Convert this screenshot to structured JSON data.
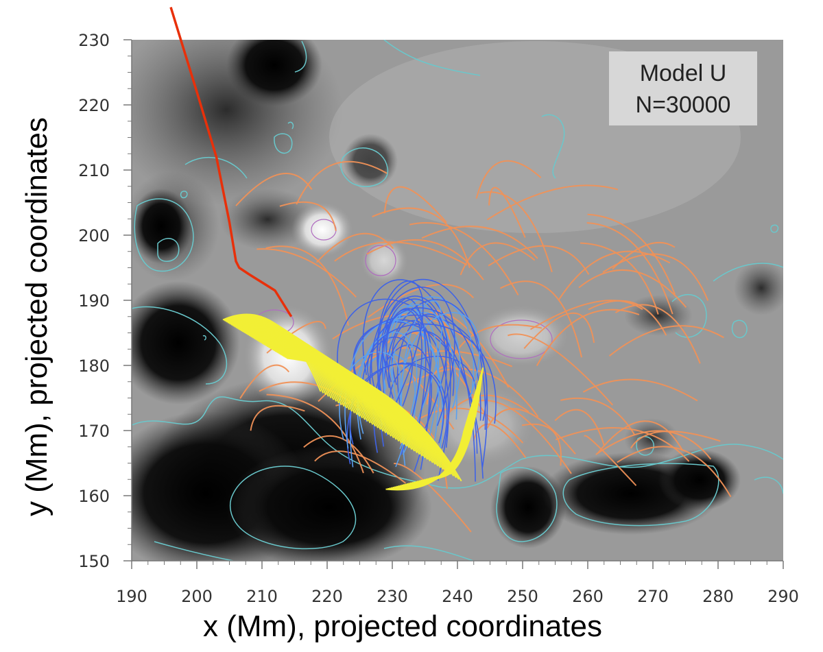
{
  "chart_data": {
    "type": "scatter",
    "xlabel": "x (Mm), projected coordinates",
    "ylabel": "y (Mm), projected coordinates",
    "xlim": [
      190,
      290
    ],
    "ylim": [
      150,
      230
    ],
    "xticks": [
      190,
      200,
      210,
      220,
      230,
      240,
      250,
      260,
      270,
      280,
      290
    ],
    "yticks": [
      150,
      160,
      170,
      180,
      190,
      200,
      210,
      220,
      230
    ],
    "xtick_labels": [
      "190",
      "200",
      "210",
      "220",
      "230",
      "240",
      "250",
      "260",
      "270",
      "280",
      "290"
    ],
    "ytick_labels": [
      "150",
      "160",
      "170",
      "180",
      "190",
      "200",
      "210",
      "220",
      "230"
    ],
    "annotation_box": {
      "line1": "Model U",
      "line2": "N=30000"
    },
    "grid": false,
    "background": "grayscale magnetogram with cyan contours",
    "series": [
      {
        "color": "#e8300a",
        "points": [
          [
            196,
            235
          ],
          [
            200,
            222
          ],
          [
            203,
            212
          ],
          [
            205,
            202
          ],
          [
            206,
            196
          ],
          [
            206.5,
            195
          ],
          [
            208,
            194
          ],
          [
            212,
            191.5
          ],
          [
            214.5,
            187.5
          ]
        ]
      }
    ],
    "field_lines": {
      "yellow": {
        "color": "#f2ef35",
        "region": {
          "x": [
            203,
            247
          ],
          "y": [
            158,
            194
          ]
        }
      },
      "blue": {
        "color": "#3f63e6",
        "region": {
          "x": [
            216,
            248
          ],
          "y": [
            160,
            201
          ]
        }
      },
      "orange": {
        "color": "#f09157",
        "region": {
          "x": [
            206,
            267
          ],
          "y": [
            164,
            208
          ]
        }
      }
    },
    "colors": {
      "contour": "#69c8cc",
      "magenta_contour": "#b06cc0",
      "annotation_box_bg": "#d7d7d7",
      "axis": "#666666"
    }
  }
}
